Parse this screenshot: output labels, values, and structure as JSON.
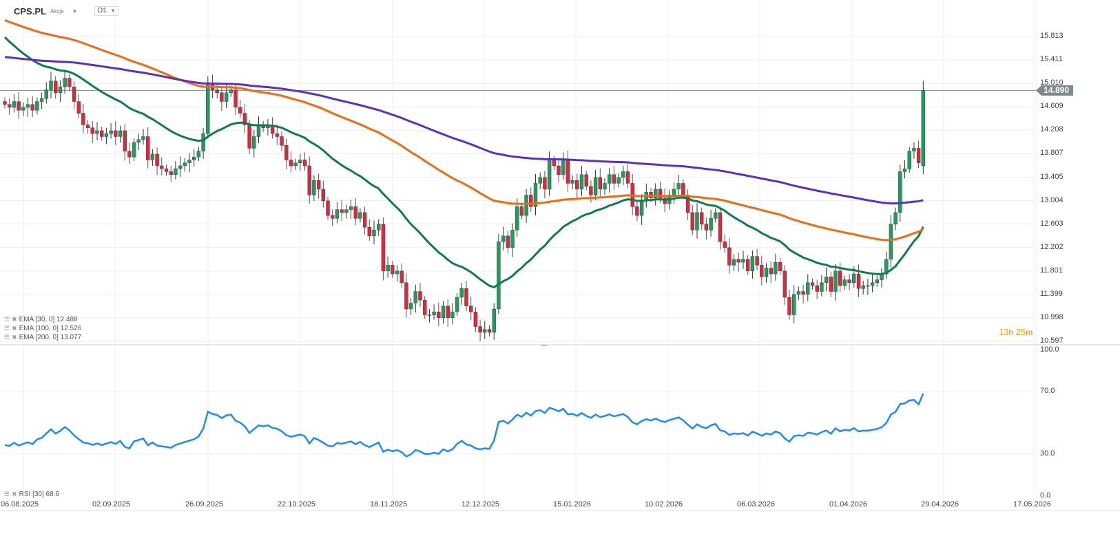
{
  "header": {
    "symbol": "CPS.PL",
    "type": "Akcje",
    "timeframe": "D1"
  },
  "current_price": "14.890",
  "timer": {
    "hours": "13",
    "h": "h",
    "minutes": "25",
    "m": "m"
  },
  "indicators": [
    {
      "label": "EMA [30, 0] 12.488",
      "color": "#0a7d4f"
    },
    {
      "label": "EMA [100, 0] 12.526",
      "color": "#f26a0f"
    },
    {
      "label": "EMA [200, 0] 13.077",
      "color": "#5b2fbf"
    }
  ],
  "rsi_label": "RSI [30] 68.6",
  "colors": {
    "up": "#1e9e5a",
    "down": "#e0263c",
    "rsi": "#1a8cff",
    "grid": "#eeeeee"
  },
  "chart_data": {
    "type": "candlestick",
    "price_ticks": [
      "15.813",
      "15.411",
      "15.010",
      "14.609",
      "14.208",
      "13.807",
      "13.405",
      "13.004",
      "12.603",
      "12.202",
      "11.801",
      "11.399",
      "10.998",
      "10.597"
    ],
    "price_range": [
      10.597,
      15.813
    ],
    "rsi_ticks": [
      "100.0",
      "70.0",
      "30.0",
      "0.0"
    ],
    "date_ticks": [
      "06.08.2025",
      "02.09.2025",
      "26.09.2025",
      "22.10.2025",
      "18.11.2025",
      "12.12.2025",
      "15.01.2026",
      "10.02.2026",
      "06.03.2026",
      "01.04.2026",
      "29.04.2026",
      "17.05.2026"
    ],
    "first_open": 14.7,
    "last_open": 13.6,
    "closes": [
      14.65,
      14.6,
      14.7,
      14.55,
      14.6,
      14.65,
      14.55,
      14.7,
      14.75,
      14.9,
      15.05,
      14.85,
      14.95,
      15.1,
      14.95,
      14.7,
      14.5,
      14.3,
      14.25,
      14.15,
      14.2,
      14.1,
      14.15,
      14.2,
      14.1,
      14.2,
      13.85,
      13.75,
      14.0,
      14.05,
      14.1,
      13.7,
      13.8,
      13.6,
      13.55,
      13.5,
      13.45,
      13.55,
      13.6,
      13.65,
      13.7,
      13.75,
      13.85,
      14.15,
      15.0,
      14.9,
      14.85,
      14.7,
      14.85,
      14.9,
      14.6,
      14.5,
      14.3,
      13.9,
      14.1,
      14.3,
      14.25,
      14.3,
      14.15,
      14.1,
      13.95,
      13.7,
      13.6,
      13.65,
      13.7,
      13.6,
      13.1,
      13.35,
      13.2,
      13.0,
      12.75,
      12.7,
      12.85,
      12.8,
      12.85,
      12.9,
      12.7,
      12.8,
      12.55,
      12.4,
      12.5,
      12.6,
      11.8,
      11.9,
      11.75,
      11.8,
      11.6,
      11.15,
      11.25,
      11.45,
      11.3,
      11.05,
      11.05,
      11.1,
      11.0,
      11.2,
      11.0,
      11.1,
      11.35,
      11.5,
      11.2,
      11.1,
      10.85,
      10.75,
      10.8,
      10.75,
      11.15,
      12.3,
      12.4,
      12.2,
      12.5,
      12.9,
      12.75,
      13.1,
      12.9,
      13.3,
      13.4,
      13.2,
      13.7,
      13.6,
      13.45,
      13.7,
      13.3,
      13.35,
      13.2,
      13.45,
      13.25,
      13.1,
      13.4,
      13.2,
      13.3,
      13.45,
      13.3,
      13.4,
      13.5,
      13.3,
      12.9,
      12.75,
      13.0,
      13.15,
      13.05,
      13.2,
      13.05,
      12.95,
      13.1,
      13.2,
      13.3,
      13.1,
      12.8,
      12.5,
      12.8,
      12.6,
      12.5,
      12.7,
      12.8,
      12.3,
      12.2,
      11.9,
      12.0,
      11.95,
      12.0,
      11.8,
      12.05,
      11.9,
      11.7,
      11.85,
      11.75,
      11.95,
      11.8,
      11.35,
      11.05,
      11.4,
      11.45,
      11.4,
      11.6,
      11.55,
      11.45,
      11.6,
      11.7,
      11.45,
      11.8,
      11.55,
      11.65,
      11.6,
      11.75,
      11.5,
      11.55,
      11.55,
      11.6,
      11.65,
      11.75,
      12.0,
      12.6,
      12.8,
      13.5,
      13.55,
      13.85,
      13.9,
      13.65,
      14.89
    ],
    "ema_seed": {
      "ema30": 15.88,
      "ema100": 16.12,
      "ema200": 15.47
    },
    "rsi_period": 30,
    "rsi_range": [
      0,
      100
    ]
  }
}
